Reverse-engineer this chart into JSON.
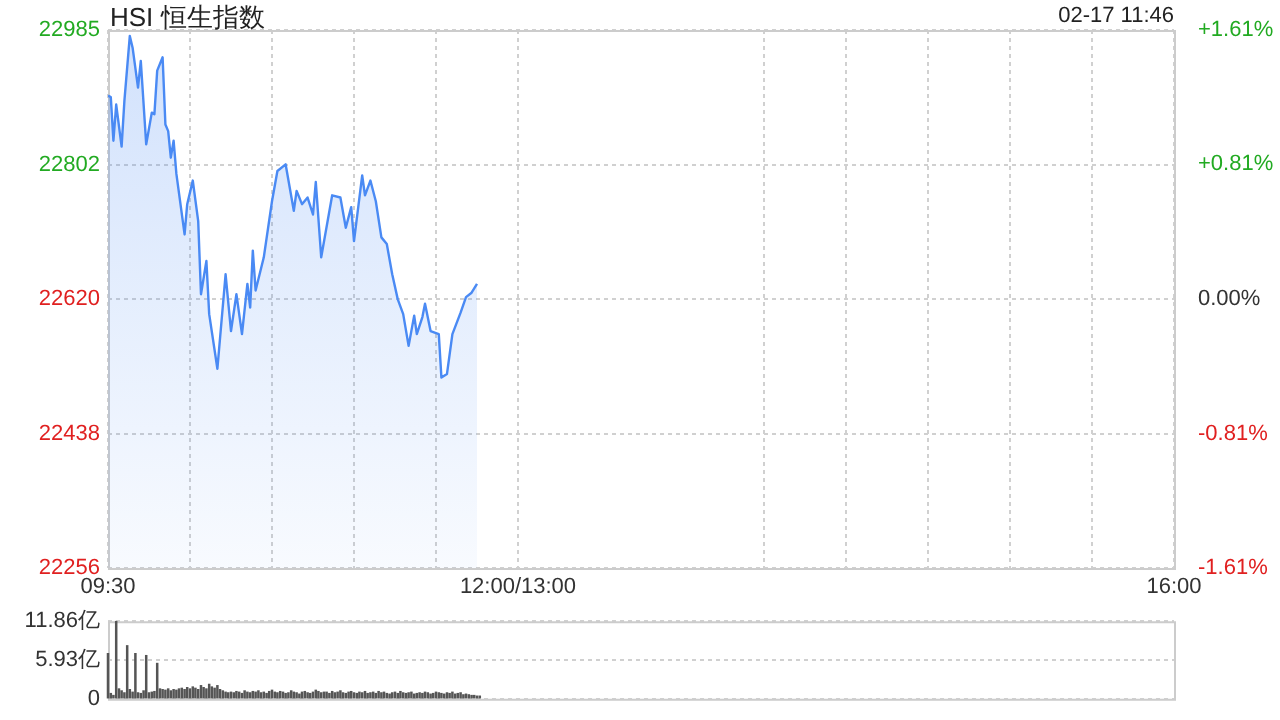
{
  "chart_data": [
    {
      "type": "area",
      "title": "HSI 恒生指数",
      "annotations": [
        "02-17 11:46"
      ],
      "x": [
        9.5,
        9.517,
        9.533,
        9.55,
        9.583,
        9.6,
        9.633,
        9.65,
        9.683,
        9.7,
        9.733,
        9.767,
        9.783,
        9.8,
        9.833,
        9.85,
        9.867,
        9.883,
        9.9,
        9.917,
        9.967,
        9.983,
        10.017,
        10.05,
        10.067,
        10.1,
        10.117,
        10.167,
        10.217,
        10.25,
        10.283,
        10.317,
        10.35,
        10.367,
        10.383,
        10.4,
        10.45,
        10.5,
        10.533,
        10.583,
        10.633,
        10.65,
        10.683,
        10.717,
        10.75,
        10.767,
        10.8,
        10.867,
        10.917,
        10.95,
        10.983,
        11,
        11.05,
        11.067,
        11.1,
        11.133,
        11.167,
        11.2,
        11.233,
        11.267,
        11.3,
        11.333,
        11.367,
        11.383,
        11.417,
        11.433,
        11.467,
        11.517,
        11.533,
        11.567,
        11.6,
        11.65,
        11.683,
        11.717,
        11.75
      ],
      "series": [
        {
          "color": "#4a8af4",
          "values": [
            22896,
            22894,
            22835,
            22884,
            22827,
            22889,
            22977,
            22961,
            22907,
            22943,
            22830,
            22873,
            22871,
            22930,
            22948,
            22857,
            22848,
            22812,
            22835,
            22790,
            22708,
            22749,
            22781,
            22726,
            22627,
            22672,
            22600,
            22526,
            22654,
            22577,
            22627,
            22573,
            22641,
            22609,
            22686,
            22632,
            22677,
            22753,
            22794,
            22803,
            22740,
            22767,
            22749,
            22758,
            22735,
            22779,
            22677,
            22761,
            22758,
            22717,
            22745,
            22699,
            22788,
            22761,
            22781,
            22753,
            22704,
            22695,
            22654,
            22620,
            22600,
            22557,
            22598,
            22573,
            22596,
            22614,
            22577,
            22573,
            22514,
            22519,
            22573,
            22602,
            22623,
            22629,
            22641
          ]
        }
      ],
      "xlim": [
        9.5,
        16
      ],
      "xticks": [
        {
          "value": 9.5,
          "label": "09:30"
        },
        {
          "value": 10,
          "label": null
        },
        {
          "value": 10.5,
          "label": null
        },
        {
          "value": 11,
          "label": null
        },
        {
          "value": 11.5,
          "label": null
        },
        {
          "value": 12,
          "label": "12:00/13:00"
        },
        {
          "value": 13.5,
          "label": null
        },
        {
          "value": 14,
          "label": null
        },
        {
          "value": 14.5,
          "label": null
        },
        {
          "value": 15,
          "label": null
        },
        {
          "value": 15.5,
          "label": null
        },
        {
          "value": 16,
          "label": "16:00"
        }
      ],
      "ylim": [
        22256,
        22985
      ],
      "yticks": [
        22256,
        22438,
        22620,
        22802,
        22985
      ],
      "y2lim": [
        -1.61,
        1.61
      ],
      "y2ticks": [
        {
          "value": -1.61,
          "label": "-1.61%"
        },
        {
          "value": -0.81,
          "label": "-0.81%"
        },
        {
          "value": 0,
          "label": "0.00%"
        },
        {
          "value": 0.81,
          "label": "+0.81%"
        },
        {
          "value": 1.61,
          "label": "+1.61%"
        }
      ],
      "grid": true,
      "legend": false,
      "marker": "none"
    },
    {
      "type": "bar",
      "color": "#555555",
      "x": [
        9.5,
        9.517,
        9.533,
        9.55,
        9.567,
        9.583,
        9.6,
        9.617,
        9.633,
        9.65,
        9.667,
        9.683,
        9.7,
        9.717,
        9.733,
        9.75,
        9.767,
        9.783,
        9.8,
        9.817,
        9.833,
        9.85,
        9.867,
        9.883,
        9.9,
        9.917,
        9.933,
        9.95,
        9.967,
        9.983,
        10,
        10.017,
        10.033,
        10.05,
        10.067,
        10.083,
        10.1,
        10.117,
        10.133,
        10.15,
        10.167,
        10.183,
        10.2,
        10.217,
        10.233,
        10.25,
        10.267,
        10.283,
        10.3,
        10.317,
        10.333,
        10.35,
        10.367,
        10.383,
        10.4,
        10.417,
        10.433,
        10.45,
        10.467,
        10.483,
        10.5,
        10.517,
        10.533,
        10.55,
        10.567,
        10.583,
        10.6,
        10.617,
        10.633,
        10.65,
        10.667,
        10.683,
        10.7,
        10.717,
        10.733,
        10.75,
        10.767,
        10.783,
        10.8,
        10.817,
        10.833,
        10.85,
        10.867,
        10.883,
        10.9,
        10.917,
        10.933,
        10.95,
        10.967,
        10.983,
        11,
        11.017,
        11.033,
        11.05,
        11.067,
        11.083,
        11.1,
        11.117,
        11.133,
        11.15,
        11.167,
        11.183,
        11.2,
        11.217,
        11.233,
        11.25,
        11.267,
        11.283,
        11.3,
        11.317,
        11.333,
        11.35,
        11.367,
        11.383,
        11.4,
        11.417,
        11.433,
        11.45,
        11.467,
        11.483,
        11.5,
        11.517,
        11.533,
        11.55,
        11.567,
        11.583,
        11.6,
        11.617,
        11.633,
        11.65,
        11.667,
        11.683,
        11.7,
        11.717,
        11.733,
        11.75,
        11.767
      ],
      "values": [
        6.9,
        0.8,
        0.5,
        11.8,
        1.5,
        1.2,
        0.9,
        8.1,
        1.4,
        1.0,
        6.9,
        0.9,
        0.8,
        1.2,
        6.6,
        0.9,
        1.0,
        1.1,
        5.4,
        1.5,
        1.4,
        1.3,
        1.5,
        1.2,
        1.4,
        1.3,
        1.5,
        1.6,
        1.4,
        1.7,
        1.5,
        1.8,
        1.6,
        1.4,
        2.0,
        1.7,
        1.5,
        2.2,
        1.8,
        1.6,
        2.0,
        1.4,
        1.2,
        1.0,
        0.9,
        1.0,
        0.9,
        1.1,
        1.0,
        0.8,
        1.2,
        1.0,
        0.9,
        1.1,
        1.0,
        1.2,
        0.9,
        1.0,
        0.8,
        1.1,
        1.3,
        1.0,
        0.9,
        1.1,
        1.0,
        0.8,
        0.9,
        1.2,
        1.0,
        0.9,
        0.7,
        1.0,
        1.1,
        0.9,
        0.8,
        1.0,
        1.3,
        1.1,
        0.9,
        1.0,
        1.0,
        0.8,
        1.1,
        0.9,
        1.0,
        1.2,
        0.9,
        0.8,
        1.0,
        1.1,
        0.9,
        0.8,
        1.0,
        0.9,
        1.1,
        0.8,
        0.9,
        1.0,
        0.8,
        1.1,
        0.9,
        1.0,
        0.8,
        0.7,
        0.9,
        1.0,
        0.8,
        1.1,
        0.9,
        0.8,
        0.9,
        1.0,
        0.7,
        0.8,
        0.9,
        0.8,
        1.0,
        0.9,
        0.7,
        0.8,
        1.0,
        0.9,
        0.8,
        0.7,
        0.9,
        0.8,
        1.0,
        0.7,
        0.8,
        0.9,
        0.6,
        0.7,
        0.6,
        0.5,
        0.5,
        0.4,
        0.4
      ],
      "xlim": [
        9.5,
        16
      ],
      "ylim": [
        0,
        11.86
      ],
      "yticks": [
        0,
        {
          "value": 5.93,
          "label": "5.93亿"
        },
        {
          "value": 11.86,
          "label": "11.86亿"
        }
      ],
      "grid": "y",
      "legend": false,
      "tick_labels": "y"
    }
  ]
}
